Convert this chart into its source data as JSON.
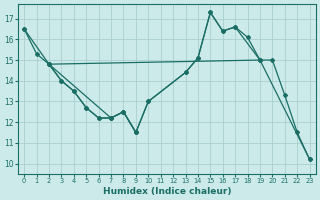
{
  "background_color": "#cceaea",
  "grid_color": "#aacfcf",
  "line_color": "#1a6e65",
  "xlabel": "Humidex (Indice chaleur)",
  "xlim": [
    -0.5,
    23.5
  ],
  "ylim": [
    9.5,
    17.7
  ],
  "xticks": [
    0,
    1,
    2,
    3,
    4,
    5,
    6,
    7,
    8,
    9,
    10,
    11,
    12,
    13,
    14,
    15,
    16,
    17,
    18,
    19,
    20,
    21,
    22,
    23
  ],
  "yticks": [
    10,
    11,
    12,
    13,
    14,
    15,
    16,
    17
  ],
  "lines": [
    {
      "x": [
        0,
        2,
        19,
        23
      ],
      "y": [
        16.5,
        14.8,
        15.0,
        10.2
      ]
    },
    {
      "x": [
        2,
        7,
        8,
        9,
        10,
        13,
        14,
        15,
        16,
        17,
        19
      ],
      "y": [
        14.8,
        12.2,
        12.5,
        11.5,
        13.0,
        14.4,
        15.1,
        17.3,
        16.4,
        16.6,
        15.0
      ]
    },
    {
      "x": [
        0,
        1,
        2,
        3,
        4,
        5,
        6,
        7,
        8,
        9,
        10,
        13,
        14,
        15,
        16,
        17,
        18,
        19,
        20,
        21,
        22,
        23
      ],
      "y": [
        16.5,
        15.3,
        14.8,
        14.0,
        13.5,
        12.7,
        12.2,
        12.2,
        12.5,
        11.5,
        13.0,
        14.4,
        15.1,
        17.3,
        16.4,
        16.6,
        16.1,
        15.0,
        15.0,
        13.3,
        11.5,
        10.2
      ]
    },
    {
      "x": [
        2,
        3,
        4,
        5,
        6,
        7,
        8,
        9
      ],
      "y": [
        14.8,
        14.0,
        13.5,
        12.7,
        12.2,
        12.2,
        12.5,
        11.5
      ]
    }
  ]
}
